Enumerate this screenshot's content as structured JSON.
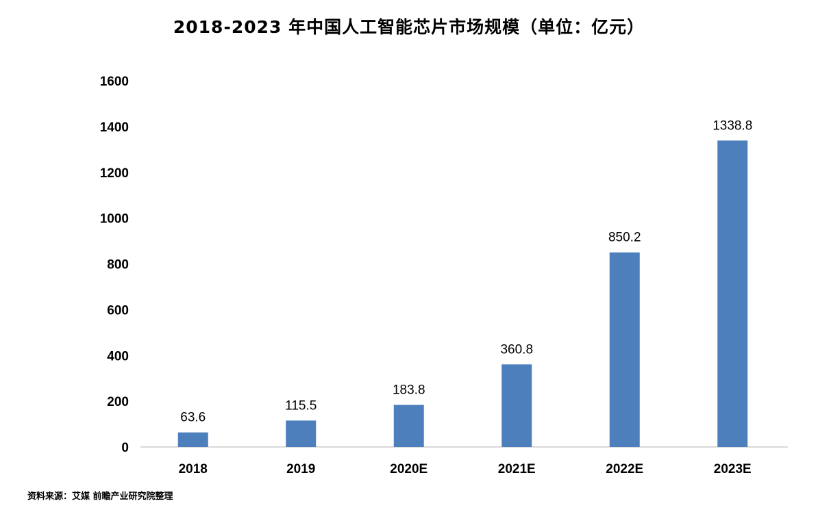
{
  "chart_data": {
    "type": "bar",
    "title": "2018-2023 年中国人工智能芯片市场规模（单位：亿元）",
    "categories": [
      "2018",
      "2019",
      "2020E",
      "2021E",
      "2022E",
      "2023E"
    ],
    "values": [
      63.6,
      115.5,
      183.8,
      360.8,
      850.2,
      1338.8
    ],
    "value_labels": [
      "63.6",
      "115.5",
      "183.8",
      "360.8",
      "850.2",
      "1338.8"
    ],
    "ylim": [
      0,
      1600
    ],
    "yticks": [
      "0",
      "200",
      "400",
      "600",
      "800",
      "1000",
      "1200",
      "1400",
      "1600"
    ],
    "xlabel": "",
    "ylabel": "",
    "grid": false,
    "legend": "none",
    "bar_color": "#4e7fbd",
    "axis_color": "#d9d9d9"
  },
  "source": "资料来源：艾媒 前瞻产业研究院整理"
}
